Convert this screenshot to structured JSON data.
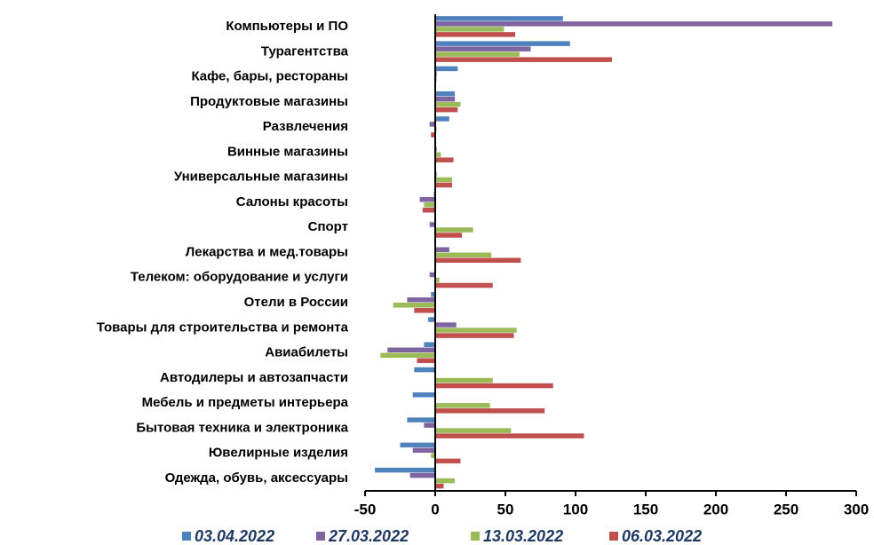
{
  "chart_data": {
    "type": "hbar",
    "categories": [
      "Компьютеры и ПО",
      "Турагентства",
      "Кафе, бары, рестораны",
      "Продуктовые магазины",
      "Развлечения",
      "Винные магазины",
      "Универсальные магазины",
      "Салоны красоты",
      "Спорт",
      "Лекарства и мед.товары",
      "Телеком: оборудование и услуги",
      "Отели в России",
      "Товары для строительства и ремонта",
      "Авиабилеты",
      "Автодилеры и автозапчасти",
      "Мебель и предметы интерьера",
      "Бытовая техника и электроника",
      "Ювелирные изделия",
      "Одежда, обувь, аксессуары"
    ],
    "series": [
      {
        "name": "03.04.2022",
        "color": "#4f81bd",
        "values": [
          91,
          96,
          16,
          14,
          10,
          0,
          0,
          -1,
          0,
          0,
          0,
          -3,
          -5,
          -8,
          -15,
          -16,
          -20,
          -25,
          -43
        ]
      },
      {
        "name": "27.03.2022",
        "color": "#8064a2",
        "values": [
          283,
          68,
          1,
          14,
          -4,
          1,
          1,
          -11,
          -4,
          10,
          -4,
          -20,
          15,
          -34,
          0,
          0,
          -8,
          -16,
          -18
        ]
      },
      {
        "name": "13.03.2022",
        "color": "#9bbb59",
        "values": [
          49,
          60,
          1,
          18,
          1,
          4,
          12,
          -8,
          27,
          40,
          3,
          -30,
          58,
          -39,
          41,
          39,
          54,
          -3,
          14
        ]
      },
      {
        "name": "06.03.2022",
        "color": "#c0504d",
        "values": [
          57,
          126,
          0,
          16,
          -3,
          13,
          12,
          -9,
          19,
          61,
          41,
          -15,
          56,
          -13,
          84,
          78,
          106,
          18,
          6
        ]
      }
    ],
    "xlim": [
      -50,
      300
    ],
    "xticks": [
      -50,
      0,
      50,
      100,
      150,
      200,
      250,
      300
    ]
  }
}
